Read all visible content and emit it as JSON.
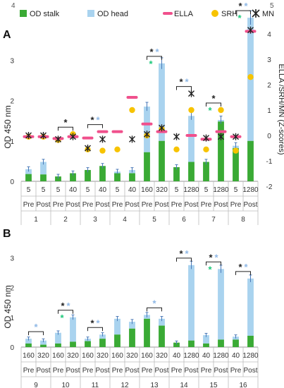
{
  "figure": {
    "top_axis_labels": [
      "4",
      "5"
    ]
  },
  "legend": [
    {
      "label": "OD stalk",
      "kind": "bar",
      "color": "#3aaa35"
    },
    {
      "label": "OD head",
      "kind": "bar",
      "color": "#a9d3ef"
    },
    {
      "label": "ELLA",
      "kind": "dash",
      "color": "#f0508c"
    },
    {
      "label": "SRH",
      "kind": "dot",
      "color": "#f7c300"
    },
    {
      "label": "MN",
      "kind": "cross",
      "color": "#222222"
    }
  ],
  "colors": {
    "stalk": "#3aaa35",
    "head": "#a9d3ef",
    "ella": "#f0508c",
    "srh": "#f7c300",
    "star_black": "#222222",
    "star_blue": "#8fb8e6",
    "star_green": "#1cc87a"
  },
  "chart_data": [
    {
      "type": "bar",
      "panel": "A",
      "title": "",
      "ylabel": "OD 450 nm",
      "y2label": "ELLA /SRH/MN (Z-scores)",
      "ylim": [
        0,
        4
      ],
      "yticks": [
        0,
        1,
        2,
        3
      ],
      "y2lim": [
        -2,
        5
      ],
      "y2ticks": [
        -2,
        -1,
        0,
        1,
        2,
        3,
        4
      ],
      "grid": false,
      "stacked": true,
      "legend_position": "top",
      "categories": [
        {
          "dose": "5",
          "time": "Pre",
          "group": "1",
          "stalk": 0.18,
          "head": 0.3,
          "ella": -0.05,
          "srh": -0.05,
          "mn": 0.0
        },
        {
          "dose": "5",
          "time": "Post",
          "group": "1",
          "stalk": 0.17,
          "head": 0.48,
          "ella": -0.05,
          "srh": -0.05,
          "mn": 0.0
        },
        {
          "dose": "5",
          "time": "Pre",
          "group": "2",
          "stalk": 0.12,
          "head": 0.12,
          "ella": -0.12,
          "srh": -0.18,
          "mn": -0.15
        },
        {
          "dose": "40",
          "time": "Post",
          "group": "2",
          "stalk": 0.2,
          "head": 0.2,
          "ella": -0.05,
          "srh": 0.05,
          "mn": -0.05
        },
        {
          "dose": "5",
          "time": "Pre",
          "group": "3",
          "stalk": 0.28,
          "head": 0.28,
          "ella": -0.1,
          "srh": -0.55,
          "mn": -0.5
        },
        {
          "dose": "40",
          "time": "Post",
          "group": "3",
          "stalk": 0.38,
          "head": 0.38,
          "ella": 0.15,
          "srh": -0.6,
          "mn": -0.15
        },
        {
          "dose": "5",
          "time": "Pre",
          "group": "4",
          "stalk": 0.2,
          "head": 0.24,
          "ella": 0.15,
          "srh": -0.55,
          "mn": null
        },
        {
          "dose": "40",
          "time": "Post",
          "group": "4",
          "stalk": 0.2,
          "head": 0.28,
          "ella": 1.5,
          "srh": 1.0,
          "mn": -0.15
        },
        {
          "dose": "160",
          "time": "Pre",
          "group": "5",
          "stalk": 0.72,
          "head": 1.85,
          "ella": 0.45,
          "srh": 0.0,
          "mn": 0.05
        },
        {
          "dose": "320",
          "time": "Post",
          "group": "5",
          "stalk": 1.0,
          "head": 2.92,
          "ella": 0.15,
          "srh": 0.25,
          "mn": 0.3
        },
        {
          "dose": "5",
          "time": "Pre",
          "group": "6",
          "stalk": 0.35,
          "head": 0.35,
          "ella": null,
          "srh": -0.55,
          "mn": -0.05
        },
        {
          "dose": "1280",
          "time": "Post",
          "group": "6",
          "stalk": 0.48,
          "head": 1.62,
          "ella": 0.0,
          "srh": 1.0,
          "mn": 1.65
        },
        {
          "dose": "5",
          "time": "Pre",
          "group": "7",
          "stalk": 0.48,
          "head": 0.48,
          "ella": -0.15,
          "srh": -0.55,
          "mn": -0.1
        },
        {
          "dose": "1280",
          "time": "Post",
          "group": "7",
          "stalk": 1.48,
          "head": 1.52,
          "ella": 0.15,
          "srh": 1.0,
          "mn": -0.05
        },
        {
          "dose": "5",
          "time": "Pre",
          "group": "8",
          "stalk": 0.82,
          "head": 0.88,
          "ella": -0.05,
          "srh": -0.6,
          "mn": -0.05
        },
        {
          "dose": "1280",
          "time": "Post",
          "group": "8",
          "stalk": 1.0,
          "head": 4.05,
          "ella": 4.1,
          "srh": 2.3,
          "mn": 4.15
        }
      ],
      "brackets": [
        {
          "from": 2,
          "to": 3,
          "stars": [
            "black"
          ]
        },
        {
          "from": 4,
          "to": 5,
          "stars": [
            "black",
            "blue"
          ]
        },
        {
          "from": 8,
          "to": 9,
          "stars": [
            "black",
            "blue",
            "green"
          ]
        },
        {
          "from": 10,
          "to": 11,
          "stars": [
            "black",
            "blue"
          ]
        },
        {
          "from": 12,
          "to": 13,
          "stars": [
            "black",
            "green"
          ]
        },
        {
          "from": 14,
          "to": 15,
          "stars": [
            "black",
            "blue",
            "green"
          ]
        }
      ]
    },
    {
      "type": "bar",
      "panel": "B",
      "title": "",
      "ylabel": "OD 450 nm",
      "ylim": [
        0,
        4
      ],
      "yticks": [
        0,
        1,
        2,
        3
      ],
      "grid": false,
      "stacked": true,
      "categories": [
        {
          "dose": "160",
          "time": "Pre",
          "group": "9",
          "stalk": 0.12,
          "head": 0.28
        },
        {
          "dose": "320",
          "time": "Post",
          "group": "9",
          "stalk": 0.08,
          "head": 0.22
        },
        {
          "dose": "160",
          "time": "Pre",
          "group": "10",
          "stalk": 0.12,
          "head": 0.48
        },
        {
          "dose": "320",
          "time": "Post",
          "group": "10",
          "stalk": 0.18,
          "head": 1.0
        },
        {
          "dose": "160",
          "time": "Pre",
          "group": "11",
          "stalk": 0.2,
          "head": 0.28
        },
        {
          "dose": "320",
          "time": "Post",
          "group": "11",
          "stalk": 0.28,
          "head": 0.42
        },
        {
          "dose": "160",
          "time": "Pre",
          "group": "12",
          "stalk": 0.42,
          "head": 0.95
        },
        {
          "dose": "320",
          "time": "Post",
          "group": "12",
          "stalk": 0.62,
          "head": 0.85
        },
        {
          "dose": "160",
          "time": "Pre",
          "group": "13",
          "stalk": 0.95,
          "head": 1.08
        },
        {
          "dose": "320",
          "time": "Post",
          "group": "13",
          "stalk": 0.72,
          "head": 0.95
        },
        {
          "dose": "40",
          "time": "Pre",
          "group": "14",
          "stalk": 0.15,
          "head": 0.15
        },
        {
          "dose": "1280",
          "time": "Post",
          "group": "14",
          "stalk": 0.22,
          "head": 2.75
        },
        {
          "dose": "40",
          "time": "Pre",
          "group": "15",
          "stalk": 0.12,
          "head": 0.4
        },
        {
          "dose": "1280",
          "time": "Post",
          "group": "15",
          "stalk": 0.25,
          "head": 2.62
        },
        {
          "dose": "40",
          "time": "Pre",
          "group": "16",
          "stalk": 0.25,
          "head": 0.35
        },
        {
          "dose": "1280",
          "time": "Post",
          "group": "16",
          "stalk": 0.38,
          "head": 2.3
        }
      ],
      "brackets": [
        {
          "from": 0,
          "to": 1,
          "stars": [
            "blue"
          ]
        },
        {
          "from": 2,
          "to": 3,
          "stars": [
            "black",
            "blue",
            "green"
          ]
        },
        {
          "from": 4,
          "to": 5,
          "stars": [
            "black",
            "blue"
          ]
        },
        {
          "from": 8,
          "to": 9,
          "stars": [
            "blue"
          ]
        },
        {
          "from": 10,
          "to": 11,
          "stars": [
            "black",
            "blue"
          ]
        },
        {
          "from": 12,
          "to": 13,
          "stars": [
            "black",
            "blue",
            "green"
          ]
        },
        {
          "from": 14,
          "to": 15,
          "stars": [
            "black",
            "blue"
          ]
        }
      ]
    }
  ]
}
